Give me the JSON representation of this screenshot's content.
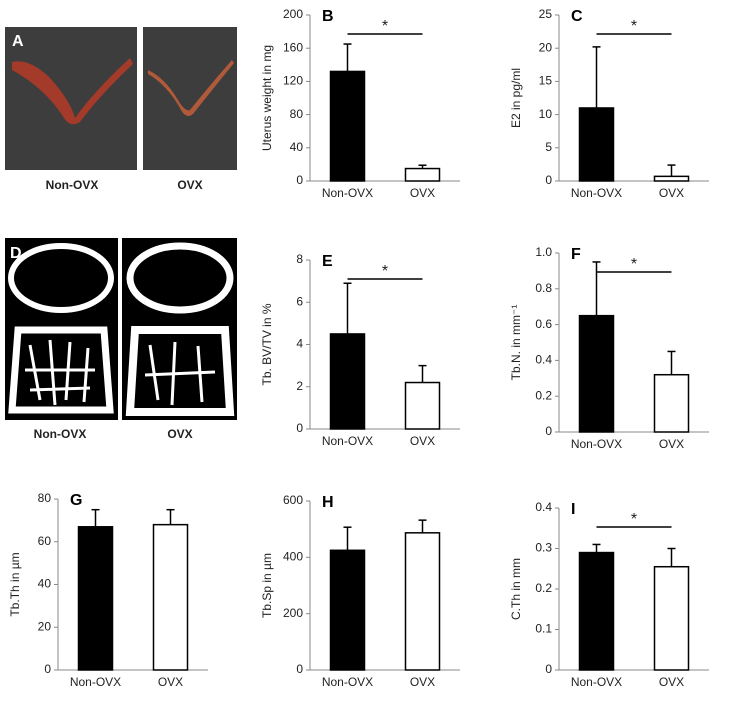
{
  "image_panels": [
    {
      "label": "A",
      "captions": [
        "Non-OVX",
        "OVX"
      ]
    },
    {
      "label": "D",
      "captions": [
        "Non-OVX",
        "OVX"
      ]
    }
  ],
  "chart_data": [
    {
      "type": "bar",
      "label": "B",
      "ylabel": "Uterus weight in mg",
      "categories": [
        "Non-OVX",
        "OVX"
      ],
      "values": [
        132,
        15
      ],
      "errors": [
        33,
        4
      ],
      "colors": [
        "#000000",
        "#ffffff"
      ],
      "ylim": [
        0,
        200
      ],
      "yticks": [
        0,
        40,
        80,
        120,
        160,
        200
      ],
      "annotation": "*"
    },
    {
      "type": "bar",
      "label": "C",
      "ylabel": "E2 in pg/ml",
      "categories": [
        "Non-OVX",
        "OVX"
      ],
      "values": [
        11,
        0.7
      ],
      "errors": [
        9.2,
        1.7
      ],
      "colors": [
        "#000000",
        "#ffffff"
      ],
      "ylim": [
        0,
        25
      ],
      "yticks": [
        0,
        5,
        10,
        15,
        20,
        25
      ],
      "annotation": "*"
    },
    {
      "type": "bar",
      "label": "E",
      "ylabel": "Tb. BV/TV in %",
      "categories": [
        "Non-OVX",
        "OVX"
      ],
      "values": [
        4.5,
        2.2
      ],
      "errors": [
        2.4,
        0.8
      ],
      "colors": [
        "#000000",
        "#ffffff"
      ],
      "ylim": [
        0,
        8
      ],
      "yticks": [
        0,
        2,
        4,
        6,
        8
      ],
      "annotation": "*"
    },
    {
      "type": "bar",
      "label": "F",
      "ylabel": "Tb.N.  in mm⁻¹",
      "categories": [
        "Non-OVX",
        "OVX"
      ],
      "values": [
        0.65,
        0.32
      ],
      "errors": [
        0.3,
        0.13
      ],
      "colors": [
        "#000000",
        "#ffffff"
      ],
      "ylim": [
        0,
        1
      ],
      "yticks": [
        0,
        0.2,
        0.4,
        0.6,
        0.8,
        {
          "value": 1,
          "label": "1.0"
        }
      ],
      "annotation": "*"
    },
    {
      "type": "bar",
      "label": "G",
      "ylabel": "Tb.Th  in µm",
      "categories": [
        "Non-OVX",
        "OVX"
      ],
      "values": [
        67,
        68
      ],
      "errors": [
        8,
        7
      ],
      "colors": [
        "#000000",
        "#ffffff"
      ],
      "ylim": [
        0,
        80
      ],
      "yticks": [
        0,
        20,
        40,
        60,
        80
      ]
    },
    {
      "type": "bar",
      "label": "H",
      "ylabel": "Tb.Sp  in µm",
      "categories": [
        "Non-OVX",
        "OVX"
      ],
      "values": [
        425,
        487
      ],
      "errors": [
        82,
        45
      ],
      "colors": [
        "#000000",
        "#ffffff"
      ],
      "ylim": [
        0,
        600
      ],
      "yticks": [
        0,
        200,
        400,
        600
      ]
    },
    {
      "type": "bar",
      "label": "I",
      "ylabel": "C.Th  in mm",
      "categories": [
        "Non-OVX",
        "OVX"
      ],
      "values": [
        0.29,
        0.255
      ],
      "errors": [
        0.02,
        0.045
      ],
      "colors": [
        "#000000",
        "#ffffff"
      ],
      "ylim": [
        0,
        0.4
      ],
      "yticks": [
        0,
        0.1,
        0.2,
        0.3,
        0.4
      ],
      "annotation": "*"
    }
  ]
}
